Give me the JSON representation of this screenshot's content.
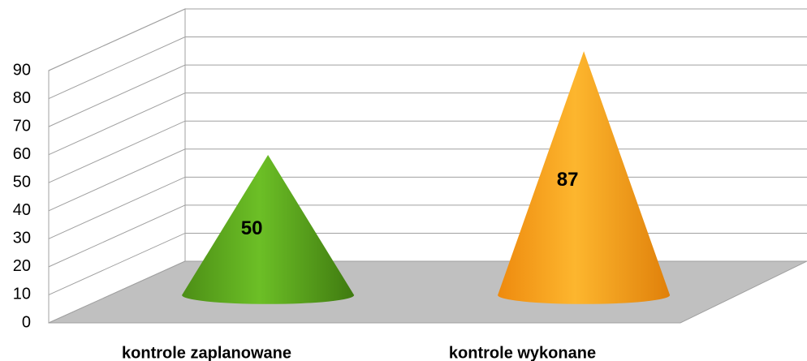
{
  "chart_data": {
    "type": "cone",
    "categories": [
      "kontrole zaplanowane",
      "kontrole wykonane"
    ],
    "values": [
      50,
      87
    ],
    "colors": [
      "#5aa41c",
      "#f7a21b"
    ],
    "ylim": [
      0,
      90
    ],
    "yticks": [
      0,
      10,
      20,
      30,
      40,
      50,
      60,
      70,
      80,
      90
    ],
    "grid": true
  }
}
